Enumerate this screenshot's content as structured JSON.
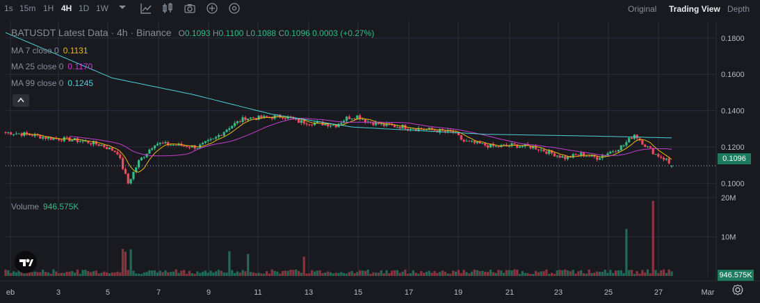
{
  "toolbar": {
    "timeframes": [
      "1s",
      "15m",
      "1H",
      "4H",
      "1D",
      "1W"
    ],
    "active_timeframe": "4H",
    "views": [
      "Original",
      "Trading View",
      "Depth"
    ],
    "active_view": "Trading View"
  },
  "legend": {
    "title": "BATUSDT Latest Data · 4h · Binance",
    "ohlc": [
      {
        "k": "O",
        "v": "0.1093"
      },
      {
        "k": "H",
        "v": "0.1100"
      },
      {
        "k": "L",
        "v": "0.1088"
      },
      {
        "k": "C",
        "v": "0.1096"
      }
    ],
    "change": "0.0003 (+0.27%)",
    "ma": [
      {
        "label": "MA 7 close 0",
        "value": "0.1131",
        "color": "#f0b90b"
      },
      {
        "label": "MA 25 close 0",
        "value": "0.1170",
        "color": "#c63fd1"
      },
      {
        "label": "MA 99 close 0",
        "value": "0.1245",
        "color": "#4fd1d9"
      }
    ],
    "volume_label": "Volume",
    "volume_value": "946.575K"
  },
  "colors": {
    "up": "#2ebd85",
    "down": "#f6465d",
    "up_vol": "#1f6b55",
    "down_vol": "#8b3440",
    "grid": "#2a2e39",
    "axis_text": "#b7bdc6",
    "bg": "#181a20"
  },
  "chart_data": {
    "type": "candlestick",
    "symbol": "BATUSDT",
    "interval": "4h",
    "x_ticks": [
      "eb",
      "3",
      "5",
      "7",
      "9",
      "11",
      "13",
      "15",
      "17",
      "19",
      "21",
      "23",
      "25",
      "27",
      "Mar"
    ],
    "y_ticks": [
      "0.1000",
      "0.1200",
      "0.1400",
      "0.1600",
      "0.1800"
    ],
    "ylim": [
      0.094,
      0.1895
    ],
    "volume_ticks": [
      "10M",
      "20M"
    ],
    "volume_ylim": [
      0,
      20000000
    ],
    "last_price": "0.1096",
    "last_volume": "946.575K",
    "close_anchors": [
      [
        0,
        0.128
      ],
      [
        8,
        0.127
      ],
      [
        16,
        0.125
      ],
      [
        24,
        0.124
      ],
      [
        30,
        0.123
      ],
      [
        36,
        0.121
      ],
      [
        42,
        0.117
      ],
      [
        46,
        0.1
      ],
      [
        50,
        0.112
      ],
      [
        56,
        0.122
      ],
      [
        64,
        0.121
      ],
      [
        72,
        0.12
      ],
      [
        78,
        0.124
      ],
      [
        84,
        0.131
      ],
      [
        90,
        0.136
      ],
      [
        96,
        0.136
      ],
      [
        104,
        0.137
      ],
      [
        110,
        0.134
      ],
      [
        118,
        0.133
      ],
      [
        124,
        0.132
      ],
      [
        128,
        0.136
      ],
      [
        132,
        0.137
      ],
      [
        136,
        0.134
      ],
      [
        142,
        0.132
      ],
      [
        150,
        0.131
      ],
      [
        156,
        0.13
      ],
      [
        162,
        0.129
      ],
      [
        168,
        0.128
      ],
      [
        172,
        0.123
      ],
      [
        176,
        0.122
      ],
      [
        184,
        0.12
      ],
      [
        190,
        0.121
      ],
      [
        198,
        0.12
      ],
      [
        204,
        0.117
      ],
      [
        210,
        0.114
      ],
      [
        216,
        0.116
      ],
      [
        222,
        0.114
      ],
      [
        228,
        0.118
      ],
      [
        232,
        0.121
      ],
      [
        236,
        0.127
      ],
      [
        240,
        0.121
      ],
      [
        244,
        0.116
      ],
      [
        248,
        0.113
      ],
      [
        250,
        0.109
      ]
    ],
    "ma99_anchors": [
      [
        0,
        0.183
      ],
      [
        16,
        0.173
      ],
      [
        40,
        0.158
      ],
      [
        70,
        0.149
      ],
      [
        100,
        0.138
      ],
      [
        130,
        0.131
      ],
      [
        180,
        0.127
      ],
      [
        220,
        0.126
      ],
      [
        250,
        0.125
      ]
    ],
    "volume_spikes": [
      [
        44,
        6900000
      ],
      [
        45,
        6200000
      ],
      [
        47,
        6800000
      ],
      [
        84,
        6300000
      ],
      [
        91,
        5600000
      ],
      [
        112,
        4900000
      ],
      [
        233,
        12000000
      ],
      [
        243,
        19200000
      ]
    ]
  }
}
